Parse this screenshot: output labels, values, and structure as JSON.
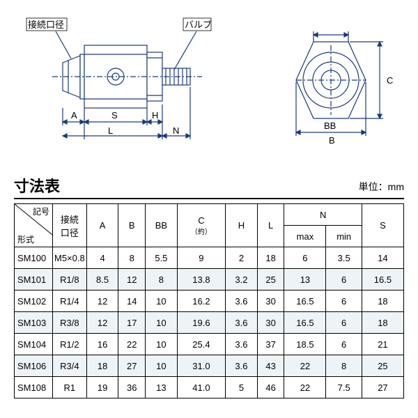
{
  "diagram": {
    "labels": {
      "connection": "接続口径",
      "valve": "バルブ",
      "A": "A",
      "S": "S",
      "H": "H",
      "L": "L",
      "N": "N",
      "BB": "BB",
      "B": "B",
      "C": "C"
    },
    "colors": {
      "stroke": "#1a3a7a",
      "fill": "#ffffff"
    }
  },
  "table": {
    "title": "寸法表",
    "unit": "単位：mm",
    "header": {
      "diag_top": "記号",
      "diag_bottom": "形式",
      "connection": "接続\n口径",
      "A": "A",
      "B": "B",
      "BB": "BB",
      "C": "C",
      "C_sub": "（約）",
      "H": "H",
      "L": "L",
      "N": "N",
      "N_max": "max",
      "N_min": "min",
      "S": "S"
    },
    "rows": [
      {
        "model": "SM100",
        "conn": "M5×0.8",
        "A": "4",
        "B": "8",
        "BB": "5.5",
        "C": "9",
        "H": "2",
        "L": "18",
        "Nmax": "6",
        "Nmin": "3.5",
        "S": "14"
      },
      {
        "model": "SM101",
        "conn": "R1/8",
        "A": "8.5",
        "B": "12",
        "BB": "8",
        "C": "13.8",
        "H": "3.2",
        "L": "25",
        "Nmax": "13",
        "Nmin": "6",
        "S": "16.5"
      },
      {
        "model": "SM102",
        "conn": "R1/4",
        "A": "12",
        "B": "14",
        "BB": "10",
        "C": "16.2",
        "H": "3.6",
        "L": "30",
        "Nmax": "16.5",
        "Nmin": "6",
        "S": "18"
      },
      {
        "model": "SM103",
        "conn": "R3/8",
        "A": "12",
        "B": "17",
        "BB": "10",
        "C": "19.6",
        "H": "3.6",
        "L": "30",
        "Nmax": "16.5",
        "Nmin": "6",
        "S": "18"
      },
      {
        "model": "SM104",
        "conn": "R1/2",
        "A": "16",
        "B": "22",
        "BB": "10",
        "C": "25.4",
        "H": "3.6",
        "L": "37",
        "Nmax": "18.5",
        "Nmin": "6",
        "S": "21"
      },
      {
        "model": "SM106",
        "conn": "R3/4",
        "A": "18",
        "B": "27",
        "BB": "10",
        "C": "31.0",
        "H": "3.6",
        "L": "43",
        "Nmax": "22",
        "Nmin": "8",
        "S": "25"
      },
      {
        "model": "SM108",
        "conn": "R1",
        "A": "19",
        "B": "36",
        "BB": "13",
        "C": "41.0",
        "H": "5",
        "L": "46",
        "Nmax": "22",
        "Nmin": "7.5",
        "S": "27"
      }
    ]
  }
}
